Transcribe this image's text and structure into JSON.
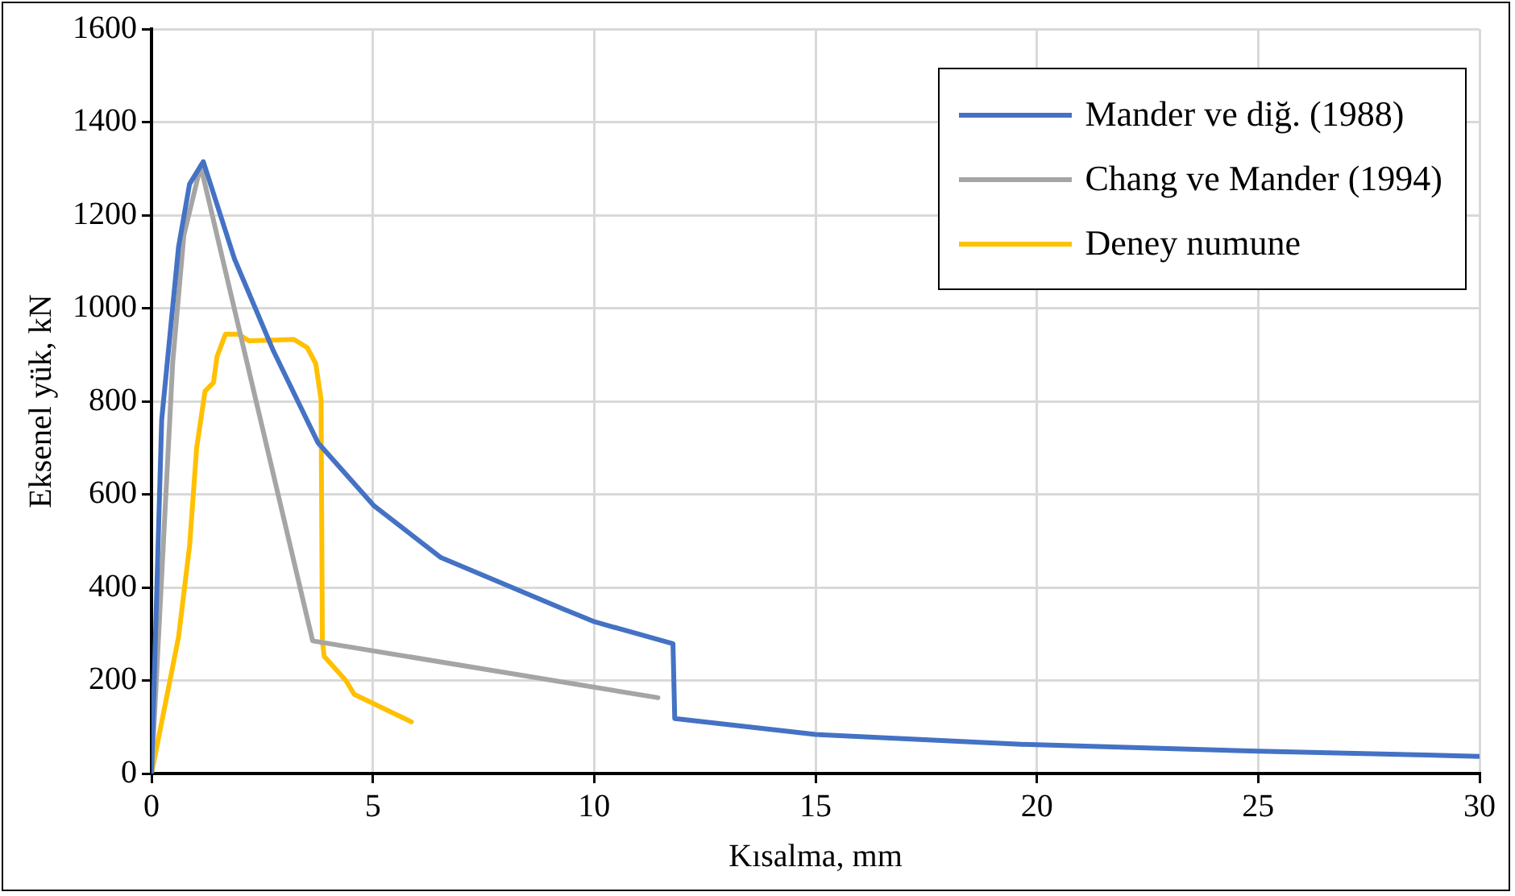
{
  "chart_data": {
    "type": "line",
    "xlabel": "Kısalma, mm",
    "ylabel": "Eksenel yük, kN",
    "xlim": [
      0,
      30
    ],
    "xticks": [
      0,
      5,
      10,
      15,
      20,
      25,
      30
    ],
    "ylim": [
      0,
      1600
    ],
    "yticks": [
      0,
      200,
      400,
      600,
      800,
      1000,
      1200,
      1400,
      1600
    ],
    "grid": true,
    "legend": "top right",
    "marker": "none",
    "line_style": "solid",
    "series": [
      {
        "name": "Mander ve diğ. (1988)",
        "color": "#4472c4",
        "x": [
          0,
          0.23,
          0.61,
          0.86,
          1.17,
          1.87,
          2.75,
          3.76,
          5.03,
          6.54,
          9.32,
          10.01,
          11.78,
          11.82,
          15,
          19.55,
          25,
          30
        ],
        "values": [
          0,
          760,
          1131,
          1267,
          1315,
          1107,
          909,
          711,
          575,
          464,
          353,
          326,
          279,
          118,
          84,
          63,
          48,
          37
        ]
      },
      {
        "name": "Chang ve Mander (1994)",
        "color": "#a5a5a5",
        "x": [
          0,
          0.48,
          0.73,
          1.11,
          3.64,
          11.44
        ],
        "values": [
          0,
          885,
          1156,
          1306,
          285,
          163
        ]
      },
      {
        "name": "Deney numune",
        "color": "#ffc000",
        "x": [
          0,
          0.61,
          0.86,
          1.02,
          1.21,
          1.4,
          1.48,
          1.67,
          1.97,
          2.2,
          3.22,
          3.52,
          3.71,
          3.83,
          3.86,
          3.9,
          4.39,
          4.58,
          5.87
        ],
        "values": [
          0,
          293,
          489,
          700,
          822,
          840,
          896,
          944,
          944,
          930,
          933,
          915,
          881,
          804,
          285,
          252,
          200,
          170,
          111
        ]
      }
    ]
  }
}
